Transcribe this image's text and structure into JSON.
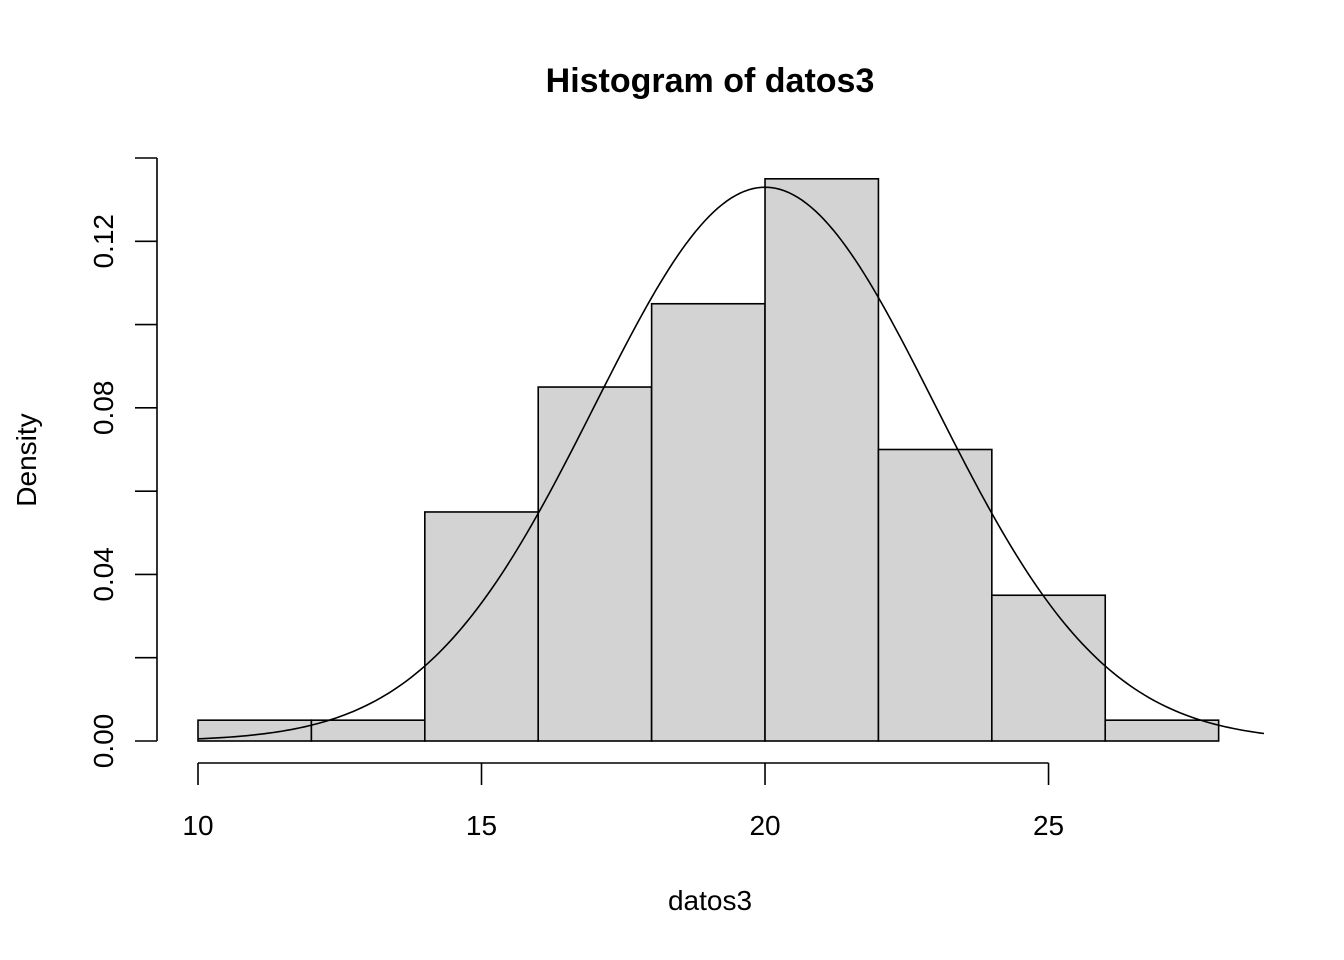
{
  "chart_data": {
    "type": "bar",
    "subtype": "histogram",
    "title": "Histogram of datos3",
    "xlabel": "datos3",
    "ylabel": "Density",
    "bin_edges": [
      10,
      12,
      14,
      16,
      18,
      20,
      22,
      24,
      26,
      28
    ],
    "values": [
      0.005,
      0.005,
      0.055,
      0.085,
      0.105,
      0.135,
      0.07,
      0.035,
      0.005
    ],
    "xlim": [
      10,
      28.8
    ],
    "ylim": [
      0,
      0.14
    ],
    "x_ticks": [
      10,
      15,
      20,
      25
    ],
    "x_tick_labels": [
      "10",
      "15",
      "20",
      "25"
    ],
    "y_ticks": [
      0,
      0.02,
      0.04,
      0.06,
      0.08,
      0.1,
      0.12,
      0.14
    ],
    "y_tick_labels": [
      "0.00",
      "",
      "0.04",
      "",
      "0.08",
      "",
      "0.12",
      ""
    ],
    "overlay_curve": {
      "type": "normal_density",
      "mean": 20,
      "sd": 3.0
    },
    "bar_fill": "#d3d3d3",
    "grid": false
  }
}
